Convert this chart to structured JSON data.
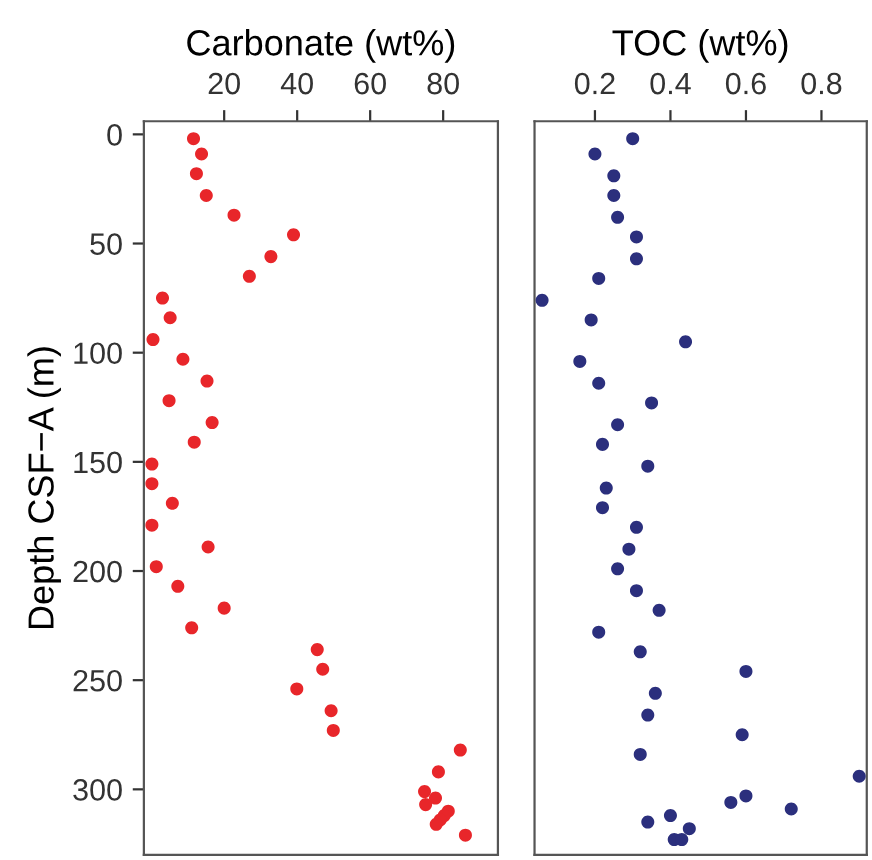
{
  "chart_data": [
    {
      "type": "scatter",
      "xlabel": "Carbonate (wt%)",
      "ylabel": "Depth CSF−A (m)",
      "xlim": [
        -2,
        95
      ],
      "xticks": [
        20,
        40,
        60,
        80
      ],
      "ylim": [
        330,
        -6
      ],
      "yticks": [
        0,
        50,
        100,
        150,
        200,
        250,
        300
      ],
      "grid": false,
      "legend": false,
      "marker": "circle",
      "series": [
        {
          "color": "#e8262a",
          "x": [
            11.6,
            13.8,
            12.4,
            15.1,
            22.7,
            39.0,
            32.8,
            26.9,
            3.1,
            5.2,
            0.5,
            8.7,
            15.3,
            4.9,
            16.7,
            11.8,
            0.2,
            0.2,
            5.8,
            0.2,
            15.6,
            1.4,
            7.3,
            20.0,
            11.1,
            45.5,
            47.0,
            39.9,
            49.3,
            49.9,
            84.7,
            78.7,
            74.9,
            77.9,
            75.2,
            81.4,
            80.3,
            79.2,
            78.1,
            86.1
          ],
          "values": [
            2,
            9,
            18,
            28,
            37,
            46,
            56,
            65,
            75,
            84,
            94,
            103,
            113,
            122,
            132,
            141,
            151,
            160,
            169,
            179,
            189,
            198,
            207,
            217,
            226,
            236,
            245,
            254,
            264,
            273,
            282,
            292,
            301,
            304,
            307,
            310,
            312,
            314,
            316,
            321
          ]
        }
      ]
    },
    {
      "type": "scatter",
      "xlabel": "TOC (wt%)",
      "xlim": [
        0.04,
        0.92
      ],
      "xticks": [
        0.2,
        0.4,
        0.6,
        0.8
      ],
      "ylim": [
        330,
        -6
      ],
      "grid": false,
      "legend": false,
      "marker": "circle",
      "tick_labels": "x",
      "series": [
        {
          "color": "#2b2f7d",
          "x": [
            0.3,
            0.2,
            0.25,
            0.25,
            0.26,
            0.31,
            0.31,
            0.21,
            0.06,
            0.19,
            0.44,
            0.16,
            0.21,
            0.35,
            0.26,
            0.22,
            0.34,
            0.23,
            0.22,
            0.31,
            0.29,
            0.26,
            0.31,
            0.37,
            0.21,
            0.32,
            0.6,
            0.36,
            0.34,
            0.59,
            0.32,
            0.9,
            0.6,
            0.56,
            0.72,
            0.4,
            0.34,
            0.45,
            0.41,
            0.43
          ],
          "values": [
            2,
            9,
            19,
            28,
            38,
            47,
            57,
            66,
            76,
            85,
            95,
            104,
            114,
            123,
            133,
            142,
            152,
            162,
            171,
            180,
            190,
            199,
            209,
            218,
            228,
            237,
            246,
            256,
            266,
            275,
            284,
            294,
            303,
            306,
            309,
            312,
            315,
            318,
            323,
            323
          ]
        }
      ]
    }
  ]
}
